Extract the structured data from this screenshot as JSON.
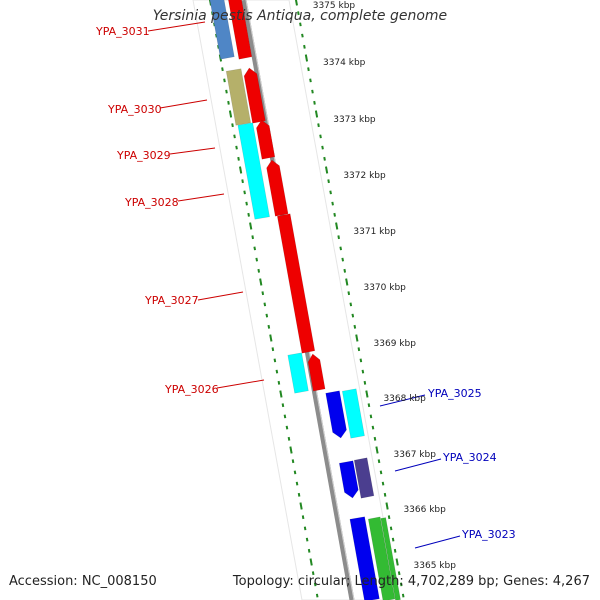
{
  "title": "Yersinia pestis Antiqua, complete genome",
  "footer": {
    "accession": "Accession: NC_008150",
    "topology": "Topology: circular; Length: 4,702,289 bp; Genes: 4,267"
  },
  "colors": {
    "backbone": "#8c8c8c",
    "tick": "#228822",
    "kbp_label": "#222222",
    "label_left": "#cc0000",
    "label_right": "#0000bb",
    "red_gene": "#ee0000",
    "cyan_gene": "#00ffff",
    "olive_gene": "#b5b06a",
    "steel_gene": "#4f86c6",
    "blue_gene": "#0000ee",
    "purple_gene": "#4b3e8f",
    "green_gene": "#33bb33"
  },
  "kbp_labels": [
    {
      "kbp": 3375,
      "text": "3375 kbp"
    },
    {
      "kbp": 3374,
      "text": "3374 kbp"
    },
    {
      "kbp": 3373,
      "text": "3373 kbp"
    },
    {
      "kbp": 3372,
      "text": "3372 kbp"
    },
    {
      "kbp": 3371,
      "text": "3371 kbp"
    },
    {
      "kbp": 3370,
      "text": "3370 kbp"
    },
    {
      "kbp": 3369,
      "text": "3369 kbp"
    },
    {
      "kbp": 3368,
      "text": "3368 kbp"
    },
    {
      "kbp": 3367,
      "text": "3367 kbp"
    },
    {
      "kbp": 3366,
      "text": "3366 kbp"
    },
    {
      "kbp": 3365,
      "text": "3365 kbp"
    }
  ],
  "gene_labels_left": [
    "YPA_3031",
    "YPA_3030",
    "YPA_3029",
    "YPA_3028",
    "YPA_3027",
    "YPA_3026"
  ],
  "gene_labels_right": [
    "YPA_3025",
    "YPA_3024",
    "YPA_3023"
  ]
}
